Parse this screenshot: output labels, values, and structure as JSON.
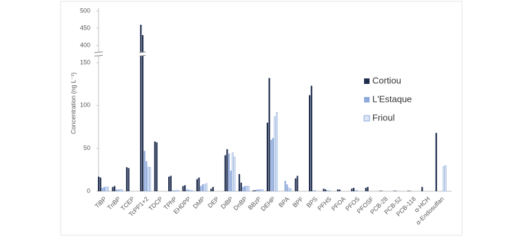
{
  "chart_data": {
    "type": "bar",
    "y_label": "Concentration (ng L⁻¹)",
    "categories": [
      "TiBP",
      "TnBP",
      "TCEP",
      "TcPP1+2",
      "TDCP",
      "TPhP",
      "EHDPP",
      "DMP",
      "DEP",
      "DiBP",
      "DnBP",
      "BBzP",
      "DEHP",
      "BPA",
      "BPF",
      "BPS",
      "PFHS",
      "PFOA",
      "PFOS",
      "PFOSF",
      "PCB-28",
      "PCB-52",
      "PCB-118",
      "α-HCH",
      "α-Endosulfan"
    ],
    "series": [
      {
        "name": "Cortiou",
        "color": "#1f2d4e",
        "values": [
          [
            17,
            16
          ],
          [
            5,
            6
          ],
          [
            28,
            27
          ],
          [
            460,
            430
          ],
          [
            58,
            57
          ],
          [
            17,
            18
          ],
          [
            6,
            7
          ],
          [
            14,
            16
          ],
          [
            3,
            5
          ],
          [
            42,
            49
          ],
          [
            20,
            10
          ],
          [
            1,
            1
          ],
          [
            80,
            132
          ],
          [
            0,
            0
          ],
          [
            15,
            18
          ],
          [
            112,
            123
          ],
          [
            3,
            2
          ],
          [
            2,
            2
          ],
          [
            3,
            4
          ],
          [
            4,
            5
          ],
          [
            0.5,
            0.5
          ],
          [
            0.5,
            0.5
          ],
          [
            0.5,
            0.5
          ],
          [
            5,
            0
          ],
          [
            68,
            0
          ]
        ]
      },
      {
        "name": "L'Estaque",
        "color": "#8ea9db",
        "values": [
          [
            4,
            5
          ],
          [
            2,
            2
          ],
          [
            0,
            0
          ],
          [
            47,
            35
          ],
          [
            0,
            0
          ],
          [
            1,
            1
          ],
          [
            2,
            2
          ],
          [
            6,
            8
          ],
          [
            0,
            0
          ],
          [
            44,
            24
          ],
          [
            5,
            6
          ],
          [
            2,
            2
          ],
          [
            60,
            62
          ],
          [
            12,
            8
          ],
          [
            0,
            0
          ],
          [
            1,
            1
          ],
          [
            1,
            1
          ],
          [
            0,
            0
          ],
          [
            1,
            1
          ],
          [
            0,
            0
          ],
          [
            0,
            0
          ],
          [
            0,
            0
          ],
          [
            0,
            0
          ],
          [
            0,
            0
          ],
          [
            0,
            0
          ]
        ]
      },
      {
        "name": "Frioul",
        "color": "#dbe5f4",
        "values": [
          [
            5,
            5
          ],
          [
            2,
            2
          ],
          [
            0,
            0
          ],
          [
            28,
            28
          ],
          [
            0,
            0
          ],
          [
            1,
            1
          ],
          [
            1,
            1
          ],
          [
            8,
            9
          ],
          [
            0,
            0
          ],
          [
            45,
            40
          ],
          [
            6,
            6
          ],
          [
            2,
            2
          ],
          [
            87,
            92
          ],
          [
            4,
            3
          ],
          [
            0,
            0
          ],
          [
            0,
            0
          ],
          [
            0,
            0
          ],
          [
            0,
            0
          ],
          [
            0,
            0
          ],
          [
            0,
            0
          ],
          [
            0,
            0
          ],
          [
            0,
            0
          ],
          [
            0,
            0
          ],
          [
            0,
            0
          ],
          [
            29,
            30
          ]
        ]
      }
    ],
    "ylim": [
      0,
      500
    ],
    "axis_break": [
      150,
      400
    ],
    "yticks": [
      0,
      50,
      100,
      150,
      400,
      450,
      500
    ],
    "legend": "right"
  }
}
